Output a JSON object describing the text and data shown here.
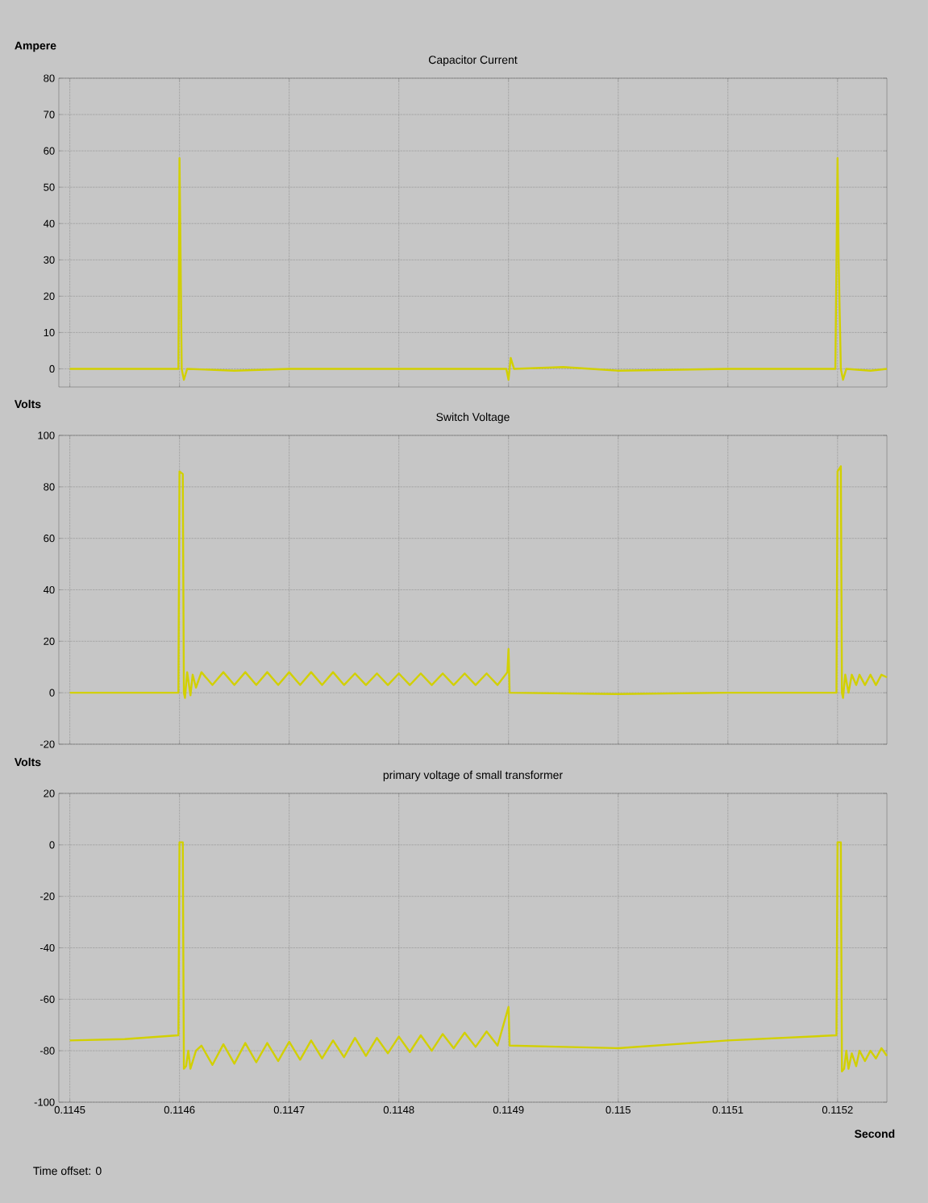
{
  "chart_data": [
    {
      "type": "line",
      "title": "Capacitor Current",
      "ylabel": "Ampere",
      "xlim": [
        0.11449,
        0.115245
      ],
      "ylim": [
        -5,
        80
      ],
      "xticks": [
        0.1145,
        0.1146,
        0.1147,
        0.1148,
        0.1149,
        0.115,
        0.1151,
        0.1152
      ],
      "yticks": [
        0,
        10,
        20,
        30,
        40,
        50,
        60,
        70,
        80
      ],
      "grid": true,
      "tick_labels": "y",
      "series": [
        {
          "color": "#d2d000",
          "x": [
            0.1145,
            0.11455,
            0.114599,
            0.1146,
            0.114601,
            0.114602,
            0.114604,
            0.114607,
            0.11465,
            0.1147,
            0.1148,
            0.114898,
            0.1149,
            0.114902,
            0.114905,
            0.11495,
            0.115,
            0.1151,
            0.115198,
            0.1152,
            0.115201,
            0.115202,
            0.115203,
            0.115205,
            0.115208,
            0.11523,
            0.115245
          ],
          "values": [
            0,
            0,
            0,
            58,
            30,
            0,
            -3,
            0,
            -0.5,
            0,
            0,
            0,
            -3,
            3,
            0,
            0.5,
            -0.5,
            0,
            0,
            58,
            30,
            15,
            0,
            -3,
            0,
            -0.5,
            0
          ]
        }
      ]
    },
    {
      "type": "line",
      "title": "Switch Voltage",
      "ylabel": "Volts",
      "xlim": [
        0.11449,
        0.115245
      ],
      "ylim": [
        -20,
        100
      ],
      "xticks": [
        0.1145,
        0.1146,
        0.1147,
        0.1148,
        0.1149,
        0.115,
        0.1151,
        0.1152
      ],
      "yticks": [
        -20,
        0,
        20,
        40,
        60,
        80,
        100
      ],
      "grid": true,
      "tick_labels": "y",
      "series": [
        {
          "color": "#d2d000",
          "x": [
            0.1145,
            0.114599,
            0.1146,
            0.114603,
            0.114604,
            0.114605,
            0.114607,
            0.11461,
            0.114612,
            0.114615,
            0.11462,
            0.11463,
            0.11464,
            0.11465,
            0.11466,
            0.11467,
            0.11468,
            0.11469,
            0.1147,
            0.11471,
            0.11472,
            0.11473,
            0.11474,
            0.11475,
            0.11476,
            0.11477,
            0.11478,
            0.11479,
            0.1148,
            0.11481,
            0.11482,
            0.11483,
            0.11484,
            0.11485,
            0.11486,
            0.11487,
            0.11488,
            0.11489,
            0.114899,
            0.1149,
            0.114901,
            0.115,
            0.1151,
            0.115199,
            0.1152,
            0.115203,
            0.115204,
            0.115205,
            0.115207,
            0.11521,
            0.115213,
            0.115217,
            0.11522,
            0.115225,
            0.11523,
            0.115235,
            0.11524,
            0.115245
          ],
          "values": [
            0,
            0,
            86,
            85,
            0,
            -2,
            8,
            -1,
            7,
            2,
            8,
            3,
            8,
            3,
            8,
            3,
            8,
            3,
            8,
            3,
            8,
            3,
            8,
            3,
            7.5,
            3,
            7.5,
            3,
            7.5,
            3,
            7.5,
            3,
            7.5,
            3,
            7.5,
            3,
            7.5,
            3,
            8,
            17,
            0,
            -0.5,
            0,
            0,
            86,
            88,
            0,
            -2,
            7,
            0,
            7,
            3,
            7,
            3,
            7,
            3,
            7,
            6
          ]
        }
      ]
    },
    {
      "type": "line",
      "title": "primary voltage of small transformer",
      "ylabel": "Volts",
      "xlabel": "Second",
      "annotations": [
        "Time offset: 0"
      ],
      "xlim": [
        0.11449,
        0.115245
      ],
      "ylim": [
        -100,
        20
      ],
      "xticks": [
        0.1145,
        0.1146,
        0.1147,
        0.1148,
        0.1149,
        0.115,
        0.1151,
        0.1152
      ],
      "yticks": [
        -100,
        -80,
        -60,
        -40,
        -20,
        0,
        20
      ],
      "grid": true,
      "series": [
        {
          "color": "#d2d000",
          "x": [
            0.1145,
            0.11455,
            0.114599,
            0.1146,
            0.114603,
            0.114604,
            0.114606,
            0.114608,
            0.11461,
            0.114615,
            0.11462,
            0.11463,
            0.11464,
            0.11465,
            0.11466,
            0.11467,
            0.11468,
            0.11469,
            0.1147,
            0.11471,
            0.11472,
            0.11473,
            0.11474,
            0.11475,
            0.11476,
            0.11477,
            0.11478,
            0.11479,
            0.1148,
            0.11481,
            0.11482,
            0.11483,
            0.11484,
            0.11485,
            0.11486,
            0.11487,
            0.11488,
            0.11489,
            0.1149,
            0.114901,
            0.11495,
            0.115,
            0.1151,
            0.115199,
            0.1152,
            0.115203,
            0.115204,
            0.115206,
            0.115208,
            0.11521,
            0.115213,
            0.115217,
            0.11522,
            0.115225,
            0.11523,
            0.115235,
            0.11524,
            0.115245
          ],
          "values": [
            -76,
            -75.5,
            -74,
            1,
            1,
            -87,
            -86,
            -80,
            -87,
            -80,
            -78,
            -85.5,
            -77.5,
            -85,
            -77,
            -84.5,
            -77,
            -84,
            -76.5,
            -83.5,
            -76,
            -83,
            -76,
            -82.5,
            -75,
            -82,
            -75,
            -81,
            -74.5,
            -80.5,
            -74,
            -80,
            -73.5,
            -79,
            -73,
            -78.5,
            -72.5,
            -78,
            -63,
            -78,
            -78.5,
            -79,
            -76,
            -74,
            1,
            1,
            -88,
            -87,
            -80,
            -87,
            -81,
            -86,
            -80,
            -84,
            -80,
            -83,
            -79,
            -82
          ]
        }
      ]
    }
  ]
}
